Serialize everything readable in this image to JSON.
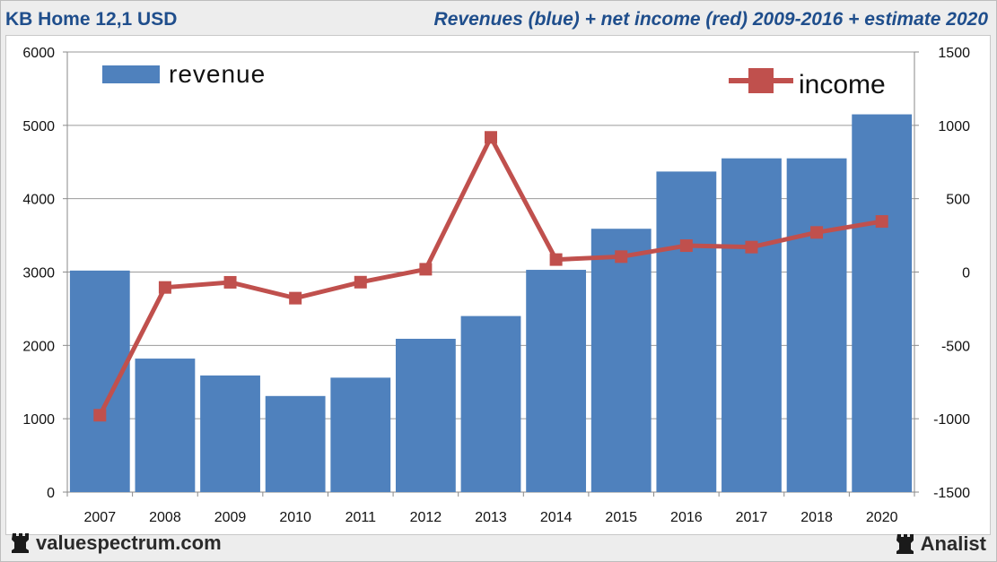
{
  "header": {
    "title": "KB Home 12,1 USD",
    "subtitle": "Revenues (blue) + net income (red) 2009-2016 + estimate 2020"
  },
  "footer": {
    "site": "valuespectrum.com",
    "brand": "Analist"
  },
  "colors": {
    "revenue": "#4f81bd",
    "income": "#c0504d",
    "title": "#1f4e8c"
  },
  "icons": {
    "logo_left": "rook-icon",
    "logo_right": "rook-icon"
  },
  "chart_data": {
    "type": "bar",
    "title": "Revenues (blue) + net income (red) 2009-2016 + estimate 2020",
    "categories": [
      "2007",
      "2008",
      "2009",
      "2010",
      "2011",
      "2012",
      "2013",
      "2014",
      "2015",
      "2016",
      "2017",
      "2018",
      "2020"
    ],
    "series": [
      {
        "name": "revenue",
        "type": "bar",
        "axis": "left",
        "values": [
          3020,
          1820,
          1590,
          1310,
          1560,
          2090,
          2400,
          3030,
          3590,
          4370,
          4550,
          4550,
          5150
        ]
      },
      {
        "name": "income",
        "type": "line",
        "axis": "right",
        "values": [
          -976,
          -105,
          -70,
          -178,
          -69,
          19,
          918,
          85,
          105,
          180,
          170,
          270,
          345
        ]
      }
    ],
    "ylim_left": [
      0,
      6000
    ],
    "yticks_left": [
      0,
      1000,
      2000,
      3000,
      4000,
      5000,
      6000
    ],
    "ylim_right": [
      -1500,
      1500
    ],
    "yticks_right": [
      -1500,
      -1000,
      -500,
      0,
      500,
      1000,
      1500
    ],
    "legend": {
      "revenue_label": "revenue",
      "income_label": "income",
      "revenue_position": "top-left",
      "income_position": "top-right"
    },
    "grid": true,
    "xlabel": "",
    "ylabel": ""
  }
}
